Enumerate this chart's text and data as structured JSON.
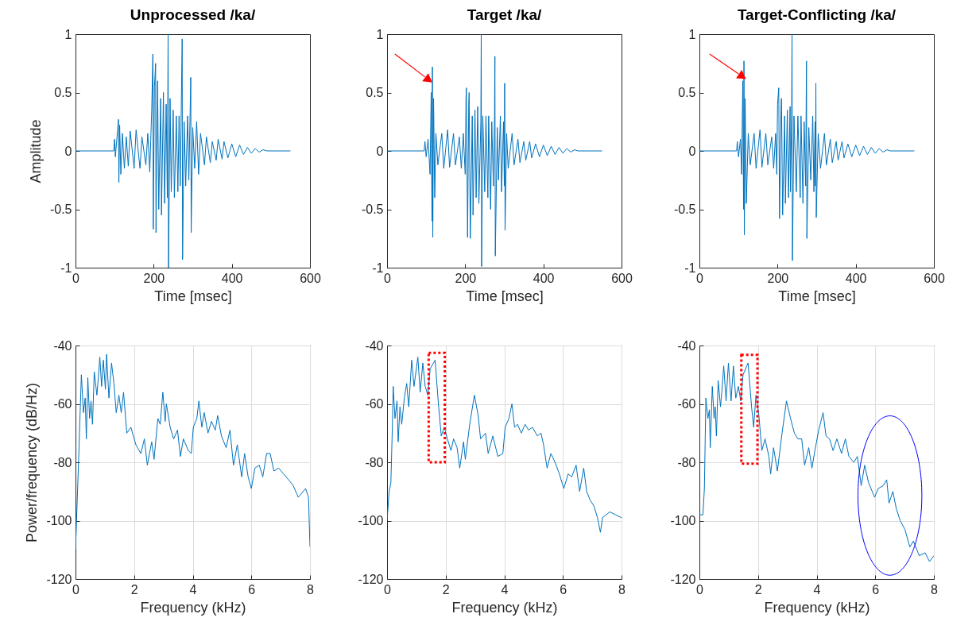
{
  "chart_data": [
    {
      "type": "line",
      "title": "Unprocessed /ka/",
      "xlabel": "Time [msec]",
      "ylabel": "Amplitude",
      "xlim": [
        0,
        600
      ],
      "xticks": [
        0,
        200,
        400,
        600
      ],
      "ylim": [
        -1,
        1
      ],
      "yticks": [
        -1,
        -0.5,
        0,
        0.5,
        1
      ],
      "series": [
        {
          "color": "#0072bd",
          "x": [
            0,
            98,
            100,
            102,
            110,
            111,
            113,
            116,
            120,
            125,
            130,
            135,
            140,
            150,
            155,
            165,
            170,
            180,
            185,
            190,
            195,
            198,
            199,
            202,
            205,
            206,
            210,
            213,
            218,
            220,
            225,
            228,
            232,
            235,
            237,
            238,
            242,
            245,
            250,
            253,
            258,
            262,
            265,
            268,
            273,
            274,
            278,
            282,
            287,
            290,
            295,
            296,
            300,
            305,
            310,
            315,
            320,
            330,
            335,
            345,
            350,
            360,
            365,
            375,
            380,
            390,
            400,
            410,
            420,
            430,
            440,
            450,
            460,
            470,
            480,
            490,
            550
          ],
          "values": [
            0,
            0,
            0.1,
            -0.05,
            0.27,
            -0.27,
            0.22,
            -0.2,
            0.15,
            -0.15,
            0.12,
            -0.13,
            0.17,
            -0.15,
            0.18,
            -0.15,
            0.12,
            -0.12,
            0.15,
            -0.18,
            0.35,
            0.83,
            -0.67,
            0.55,
            0.75,
            -0.7,
            0.6,
            -0.5,
            0.45,
            -0.55,
            0.5,
            -0.45,
            0.4,
            -0.4,
            1,
            -1,
            0.45,
            -0.35,
            0.35,
            -0.4,
            0.3,
            -0.35,
            0.3,
            -0.3,
            0.96,
            -0.93,
            0.25,
            -0.3,
            0.3,
            -0.25,
            0.63,
            -0.7,
            0.2,
            -0.15,
            0.25,
            -0.2,
            0.15,
            -0.12,
            0.12,
            -0.1,
            0.08,
            -0.08,
            0.1,
            -0.07,
            0.08,
            -0.06,
            0.06,
            -0.05,
            0.05,
            -0.03,
            0.03,
            -0.02,
            0.02,
            -0.01,
            0.01,
            0,
            0
          ]
        }
      ]
    },
    {
      "type": "line",
      "title": "Target /ka/",
      "xlabel": "Time [msec]",
      "xlim": [
        0,
        600
      ],
      "xticks": [
        0,
        200,
        400,
        600
      ],
      "ylim": [
        -1,
        1
      ],
      "yticks": [
        -1,
        -0.5,
        0,
        0.5,
        1
      ],
      "series": [
        {
          "color": "#0072bd",
          "x": [
            0,
            95,
            97,
            100,
            105,
            110,
            113,
            115,
            116,
            117,
            119,
            122,
            125,
            130,
            140,
            145,
            155,
            160,
            170,
            175,
            185,
            190,
            195,
            200,
            202,
            203,
            206,
            209,
            210,
            213,
            218,
            220,
            225,
            228,
            232,
            235,
            240,
            241,
            242,
            245,
            250,
            253,
            258,
            260,
            265,
            268,
            272,
            275,
            276,
            277,
            282,
            285,
            290,
            293,
            298,
            300,
            301,
            302,
            306,
            310,
            320,
            325,
            335,
            340,
            350,
            355,
            365,
            370,
            380,
            390,
            400,
            410,
            420,
            430,
            440,
            450,
            460,
            470,
            480,
            488,
            550
          ],
          "values": [
            0,
            0,
            0.08,
            -0.05,
            0.1,
            -0.2,
            0.5,
            -0.6,
            0.72,
            -0.74,
            0.45,
            -0.4,
            0.15,
            -0.12,
            0.15,
            -0.15,
            0.18,
            -0.14,
            0.15,
            -0.12,
            0.12,
            -0.15,
            0.15,
            -0.2,
            0.45,
            0.54,
            -0.74,
            0.4,
            0.5,
            -0.75,
            0.3,
            -0.55,
            0.35,
            -0.4,
            0.38,
            -0.45,
            0.25,
            1,
            -0.99,
            0.3,
            -0.35,
            0.3,
            -0.4,
            0.3,
            -0.5,
            0.25,
            -0.3,
            0.3,
            0.81,
            -0.9,
            0.2,
            -0.25,
            0.3,
            -0.35,
            0.25,
            -0.3,
            0.58,
            -0.68,
            0.15,
            -0.15,
            0.15,
            -0.12,
            0.1,
            -0.1,
            0.08,
            -0.08,
            0.08,
            -0.06,
            0.06,
            -0.05,
            0.05,
            -0.04,
            0.04,
            -0.03,
            0.03,
            -0.02,
            0.02,
            -0.01,
            0.01,
            0,
            0
          ]
        }
      ]
    },
    {
      "type": "line",
      "title": "Target-Conflicting /ka/",
      "xlabel": "Time [msec]",
      "xlim": [
        0,
        600
      ],
      "xticks": [
        0,
        200,
        400,
        600
      ],
      "ylim": [
        -1,
        1
      ],
      "yticks": [
        -1,
        -0.5,
        0,
        0.5,
        1
      ],
      "series": [
        {
          "color": "#0072bd",
          "x": [
            0,
            95,
            97,
            100,
            105,
            108,
            111,
            113,
            114,
            115,
            117,
            120,
            125,
            130,
            140,
            145,
            155,
            160,
            170,
            175,
            185,
            190,
            195,
            198,
            200,
            203,
            205,
            209,
            210,
            213,
            218,
            220,
            225,
            228,
            232,
            233,
            236,
            237,
            238,
            242,
            248,
            252,
            258,
            260,
            265,
            268,
            272,
            273,
            274,
            275,
            280,
            285,
            290,
            293,
            296,
            297,
            298,
            299,
            304,
            310,
            320,
            325,
            335,
            340,
            350,
            355,
            365,
            370,
            380,
            390,
            400,
            410,
            420,
            430,
            440,
            450,
            460,
            470,
            480,
            488,
            550
          ],
          "values": [
            0,
            0,
            0.08,
            -0.05,
            0.1,
            -0.2,
            0.6,
            -0.5,
            0.77,
            -0.72,
            0.45,
            -0.45,
            0.15,
            -0.12,
            0.15,
            -0.15,
            0.18,
            -0.14,
            0.15,
            -0.12,
            0.12,
            -0.15,
            0.15,
            -0.2,
            0.4,
            0.54,
            -0.58,
            0.4,
            0.45,
            -0.55,
            0.3,
            -0.45,
            0.35,
            -0.4,
            0.38,
            -0.35,
            0.3,
            1,
            -0.94,
            0.3,
            -0.35,
            0.3,
            -0.4,
            0.3,
            -0.45,
            0.25,
            -0.3,
            0.3,
            0.77,
            -0.75,
            0.2,
            -0.25,
            0.3,
            -0.35,
            0.25,
            -0.3,
            0.58,
            -0.57,
            0.15,
            -0.15,
            0.15,
            -0.12,
            0.1,
            -0.1,
            0.08,
            -0.08,
            0.08,
            -0.06,
            0.06,
            -0.05,
            0.05,
            -0.04,
            0.04,
            -0.03,
            0.03,
            -0.02,
            0.02,
            -0.01,
            0.01,
            0,
            0
          ]
        }
      ]
    },
    {
      "type": "line",
      "xlabel": "Frequency (kHz)",
      "ylabel": "Power/frequency (dB/Hz)",
      "xlim": [
        0,
        8
      ],
      "xticks": [
        0,
        2,
        4,
        6,
        8
      ],
      "ylim": [
        -120,
        -40
      ],
      "yticks": [
        -120,
        -100,
        -80,
        -60,
        -40
      ],
      "grid": true,
      "series": [
        {
          "color": "#0072bd",
          "x": [
            0,
            0.1,
            0.2,
            0.27,
            0.33,
            0.37,
            0.42,
            0.48,
            0.53,
            0.58,
            0.64,
            0.73,
            0.78,
            0.83,
            0.89,
            0.95,
            1.02,
            1.06,
            1.14,
            1.23,
            1.31,
            1.39,
            1.48,
            1.56,
            1.64,
            1.75,
            1.89,
            2.06,
            2.23,
            2.35,
            2.45,
            2.6,
            2.68,
            2.81,
            2.89,
            2.98,
            3.06,
            3.1,
            3.23,
            3.35,
            3.48,
            3.58,
            3.68,
            3.85,
            3.95,
            4.02,
            4.14,
            4.21,
            4.31,
            4.39,
            4.52,
            4.64,
            4.77,
            4.85,
            4.98,
            5.14,
            5.27,
            5.39,
            5.52,
            5.67,
            5.77,
            5.89,
            6,
            6.12,
            6.27,
            6.39,
            6.52,
            6.64,
            6.77,
            6.93,
            7.1,
            7.27,
            7.43,
            7.6,
            7.85,
            7.95,
            8
          ],
          "values": [
            -110,
            -81,
            -50,
            -63,
            -58,
            -72,
            -51,
            -65,
            -59,
            -67,
            -49,
            -57,
            -51,
            -44,
            -54,
            -45,
            -55,
            -43,
            -58,
            -46,
            -53,
            -63,
            -57,
            -63,
            -56,
            -70,
            -68,
            -74,
            -77,
            -72,
            -81,
            -73,
            -79,
            -65,
            -67,
            -56,
            -66,
            -60,
            -68,
            -72,
            -69,
            -78,
            -72,
            -76,
            -77,
            -68,
            -65,
            -59,
            -68,
            -63,
            -70,
            -66,
            -69,
            -64,
            -71,
            -75,
            -69,
            -81,
            -74,
            -85,
            -77,
            -85,
            -89,
            -82,
            -81,
            -85,
            -77,
            -77,
            -83,
            -82,
            -84,
            -86,
            -88,
            -92,
            -89,
            -92,
            -109
          ]
        }
      ]
    },
    {
      "type": "line",
      "xlabel": "Frequency (kHz)",
      "xlim": [
        0,
        8
      ],
      "xticks": [
        0,
        2,
        4,
        6,
        8
      ],
      "ylim": [
        -120,
        -40
      ],
      "yticks": [
        -120,
        -100,
        -80,
        -60,
        -40
      ],
      "grid": true,
      "series": [
        {
          "color": "#0072bd",
          "x": [
            0,
            0.07,
            0.13,
            0.17,
            0.21,
            0.27,
            0.34,
            0.38,
            0.44,
            0.5,
            0.59,
            0.67,
            0.74,
            0.84,
            0.92,
            1.05,
            1.13,
            1.22,
            1.3,
            1.39,
            1.47,
            1.64,
            1.76,
            1.85,
            1.95,
            2.06,
            2.18,
            2.27,
            2.39,
            2.48,
            2.61,
            2.67,
            2.82,
            2.98,
            3.11,
            3.19,
            3.36,
            3.45,
            3.61,
            3.78,
            3.95,
            4.03,
            4.16,
            4.26,
            4.35,
            4.45,
            4.58,
            4.71,
            4.83,
            4.96,
            5.13,
            5.25,
            5.34,
            5.46,
            5.59,
            5.73,
            5.88,
            6.03,
            6.18,
            6.3,
            6.45,
            6.57,
            6.71,
            6.81,
            6.93,
            7.06,
            7.18,
            7.28,
            7.35,
            7.6,
            7.8,
            8
          ],
          "values": [
            -100,
            -90,
            -87,
            -72,
            -54,
            -65,
            -59,
            -73,
            -61,
            -67,
            -58,
            -53,
            -61,
            -45,
            -54,
            -44,
            -56,
            -46,
            -54,
            -57,
            -48,
            -45,
            -61,
            -71,
            -68,
            -72,
            -76,
            -72,
            -75,
            -82,
            -73,
            -79,
            -67,
            -57,
            -64,
            -72,
            -70,
            -77,
            -71,
            -78,
            -77,
            -68,
            -65,
            -60,
            -68,
            -67,
            -70,
            -67,
            -69,
            -68,
            -71,
            -70,
            -74,
            -82,
            -77,
            -80,
            -84,
            -89,
            -84,
            -85,
            -81,
            -90,
            -82,
            -90,
            -93,
            -95,
            -99,
            -104,
            -99,
            -97,
            -98,
            -99
          ]
        }
      ]
    },
    {
      "type": "line",
      "xlabel": "Frequency (kHz)",
      "xlim": [
        0,
        8
      ],
      "xticks": [
        0,
        2,
        4,
        6,
        8
      ],
      "ylim": [
        -120,
        -40
      ],
      "yticks": [
        -120,
        -100,
        -80,
        -60,
        -40
      ],
      "grid": true,
      "series": [
        {
          "color": "#0072bd",
          "x": [
            0,
            0.12,
            0.17,
            0.22,
            0.29,
            0.34,
            0.37,
            0.44,
            0.5,
            0.54,
            0.58,
            0.64,
            0.72,
            0.77,
            0.83,
            0.91,
            0.99,
            1.08,
            1.16,
            1.24,
            1.33,
            1.41,
            1.49,
            1.66,
            1.78,
            1.85,
            1.93,
            2.03,
            2.13,
            2.24,
            2.37,
            2.43,
            2.53,
            2.66,
            2.82,
            2.97,
            3.11,
            3.24,
            3.36,
            3.49,
            3.59,
            3.73,
            3.84,
            3.94,
            4.07,
            4.22,
            4.32,
            4.44,
            4.56,
            4.69,
            4.85,
            4.98,
            5.1,
            5.27,
            5.39,
            5.52,
            5.64,
            5.77,
            5.98,
            6.1,
            6.27,
            6.39,
            6.47,
            6.6,
            6.72,
            6.85,
            7.01,
            7.18,
            7.3,
            7.5,
            7.7,
            7.85,
            8
          ],
          "values": [
            -98,
            -98,
            -89,
            -58,
            -65,
            -62,
            -75,
            -54,
            -65,
            -61,
            -71,
            -52,
            -61,
            -55,
            -47,
            -59,
            -46,
            -59,
            -47,
            -58,
            -54,
            -59,
            -50,
            -46,
            -61,
            -68,
            -57,
            -64,
            -76,
            -72,
            -78,
            -84,
            -75,
            -83,
            -70,
            -59,
            -65,
            -70,
            -72,
            -72,
            -81,
            -75,
            -82,
            -76,
            -69,
            -63,
            -71,
            -72,
            -76,
            -72,
            -77,
            -72,
            -78,
            -80,
            -78,
            -88,
            -81,
            -87,
            -92,
            -89,
            -88,
            -86,
            -94,
            -90,
            -96,
            -100,
            -103,
            -109,
            -107,
            -112,
            -111,
            -114,
            -112
          ]
        }
      ]
    }
  ]
}
